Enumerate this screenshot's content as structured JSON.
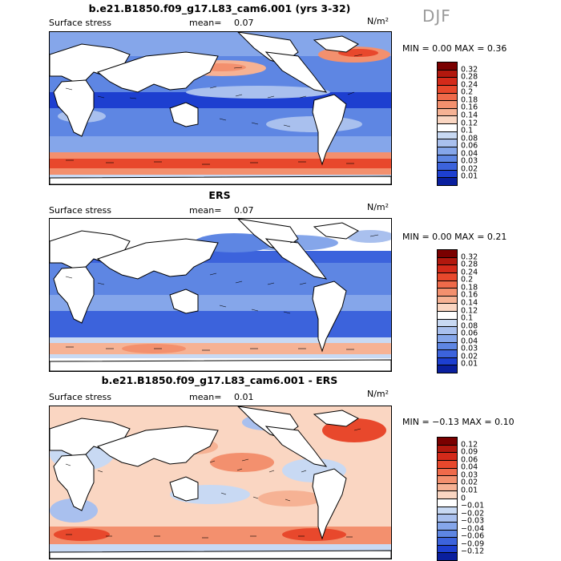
{
  "season": "DJF",
  "panels": [
    {
      "title": "b.e21.B1850.f09_g17.L83_cam6.001 (yrs 3-32)",
      "field": "Surface stress",
      "mean_label": "mean=",
      "mean_value": "0.07",
      "units": "N/m²",
      "min_max": "MIN =   0.00 MAX =   0.36",
      "colorbar": [
        "0.32",
        "0.28",
        "0.24",
        "0.2",
        "0.18",
        "0.16",
        "0.14",
        "0.12",
        "0.1",
        "0.08",
        "0.06",
        "0.04",
        "0.03",
        "0.02",
        "0.01"
      ],
      "colors": [
        "#7a0000",
        "#b2180e",
        "#d42a1a",
        "#e8482c",
        "#ef6a4a",
        "#f3906e",
        "#f6b294",
        "#fad6c2",
        "#ffffff",
        "#c8d9f3",
        "#a9c0ee",
        "#85a6ea",
        "#5e86e3",
        "#3c63dc",
        "#1d3fd0",
        "#0a1f9e"
      ]
    },
    {
      "title": "ERS",
      "field": "Surface stress",
      "mean_label": "mean=",
      "mean_value": "0.07",
      "units": "N/m²",
      "min_max": "MIN =   0.00 MAX =   0.21",
      "colorbar": [
        "0.32",
        "0.28",
        "0.24",
        "0.2",
        "0.18",
        "0.16",
        "0.14",
        "0.12",
        "0.1",
        "0.08",
        "0.06",
        "0.04",
        "0.03",
        "0.02",
        "0.01"
      ],
      "colors": [
        "#7a0000",
        "#b2180e",
        "#d42a1a",
        "#e8482c",
        "#ef6a4a",
        "#f3906e",
        "#f6b294",
        "#fad6c2",
        "#ffffff",
        "#c8d9f3",
        "#a9c0ee",
        "#85a6ea",
        "#5e86e3",
        "#3c63dc",
        "#1d3fd0",
        "#0a1f9e"
      ]
    },
    {
      "title": "b.e21.B1850.f09_g17.L83_cam6.001 - ERS",
      "field": "Surface stress",
      "mean_label": "mean=",
      "mean_value": "0.01",
      "units": "N/m²",
      "min_max": "MIN =  −0.13 MAX =   0.10",
      "colorbar": [
        "0.12",
        "0.09",
        "0.06",
        "0.04",
        "0.03",
        "0.02",
        "0.01",
        "0",
        "−0.01",
        "−0.02",
        "−0.03",
        "−0.04",
        "−0.06",
        "−0.09",
        "−0.12"
      ],
      "colors": [
        "#7a0000",
        "#b2180e",
        "#d42a1a",
        "#e8482c",
        "#ef6a4a",
        "#f3906e",
        "#f6b294",
        "#fad6c2",
        "#ffffff",
        "#c8d9f3",
        "#a9c0ee",
        "#85a6ea",
        "#5e86e3",
        "#3c63dc",
        "#1d3fd0",
        "#0a1f9e"
      ]
    }
  ]
}
